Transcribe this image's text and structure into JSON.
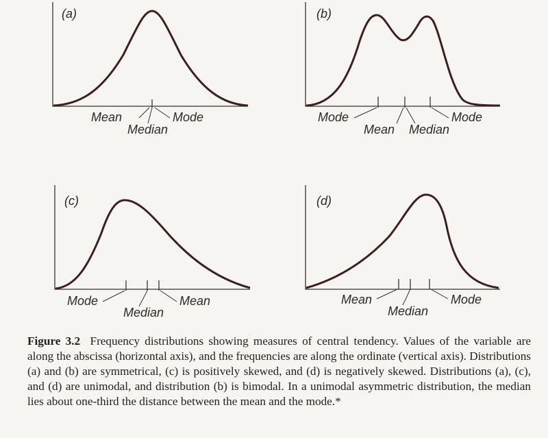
{
  "panels": [
    {
      "id": "a",
      "label": "(a)",
      "curve": "symmetric-unimodal",
      "ticks": [
        {
          "value": "Mean",
          "side": "left"
        },
        {
          "value": "Median",
          "side": "below"
        },
        {
          "value": "Mode",
          "side": "right"
        }
      ]
    },
    {
      "id": "b",
      "label": "(b)",
      "curve": "symmetric-bimodal",
      "ticks": [
        {
          "value": "Mode",
          "side": "left"
        },
        {
          "value": "Mean",
          "side": "below"
        },
        {
          "value": "Median",
          "side": "below"
        },
        {
          "value": "Mode",
          "side": "right"
        }
      ]
    },
    {
      "id": "c",
      "label": "(c)",
      "curve": "positively-skewed",
      "ticks": [
        {
          "value": "Mode",
          "side": "left"
        },
        {
          "value": "Median",
          "side": "below"
        },
        {
          "value": "Mean",
          "side": "right"
        }
      ]
    },
    {
      "id": "d",
      "label": "(d)",
      "curve": "negatively-skewed",
      "ticks": [
        {
          "value": "Mean",
          "side": "left"
        },
        {
          "value": "Median",
          "side": "below"
        },
        {
          "value": "Mode",
          "side": "right"
        }
      ]
    }
  ],
  "caption": {
    "figure_number": "Figure 3.2",
    "text": "Frequency distributions showing measures of central tendency. Values of the variable are along the abscissa (horizontal axis), and the frequencies are along the ordinate (vertical axis). Distributions (a) and (b) are symmetrical, (c) is positively skewed, and (d) is negatively skewed. Distributions (a), (c), and (d) are unimodal, and distribution (b) is bimodal. In a unimodal asymmetric distribution, the median lies about one-third the distance between the mean and the mode.*"
  },
  "colors": {
    "curve": "#3a2020",
    "axis": "#333333",
    "paper": "#f7f5f0"
  }
}
